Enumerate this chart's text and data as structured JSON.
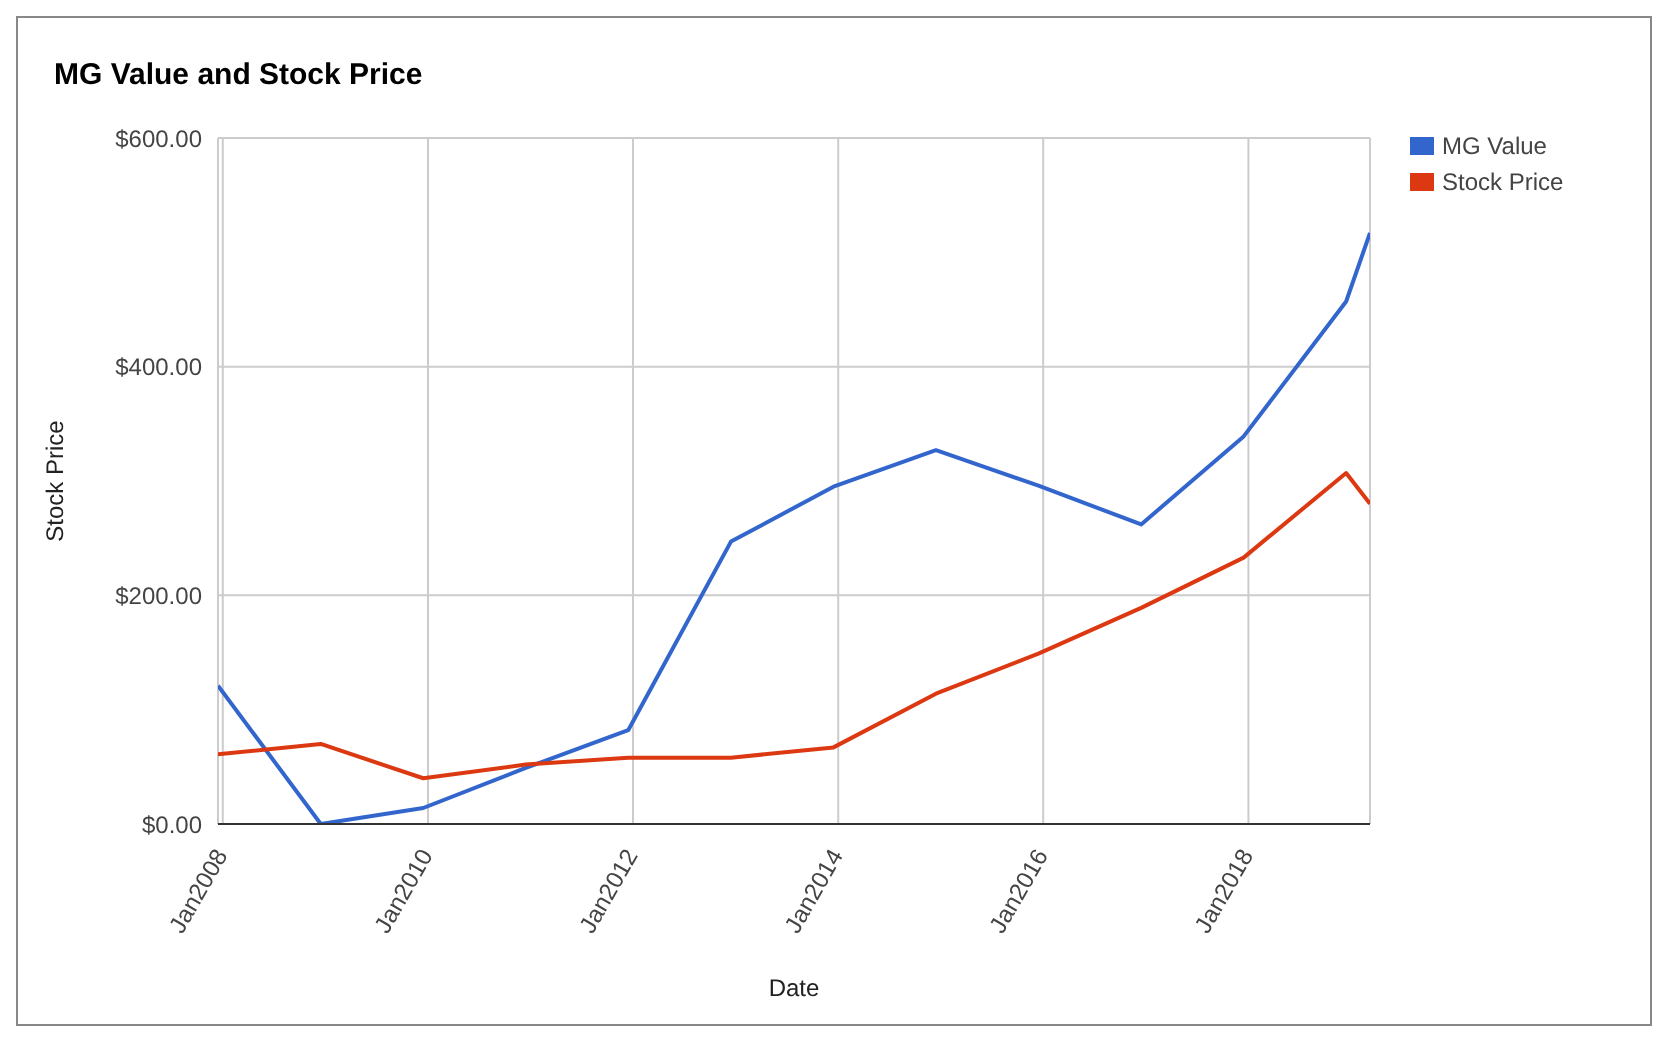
{
  "chart_data": {
    "type": "line",
    "title": "MG Value and Stock Price",
    "xlabel": "Date",
    "ylabel": "Stock Price",
    "x": [
      "2007-12-15",
      "2008-12-15",
      "2009-12-15",
      "2010-12-15",
      "2011-12-15",
      "2012-12-15",
      "2013-12-15",
      "2014-12-15",
      "2015-12-15",
      "2016-12-15",
      "2017-12-15",
      "2018-12-15",
      "2019-03-10"
    ],
    "series": [
      {
        "name": "MG Value",
        "color": "#3366cc",
        "values": [
          121,
          0,
          14,
          49,
          82,
          247,
          295,
          327,
          296,
          262,
          339,
          457,
          517
        ]
      },
      {
        "name": "Stock Price",
        "color": "#dc3912",
        "values": [
          61,
          70,
          40,
          52,
          58,
          58,
          67,
          114,
          149,
          189,
          233,
          307,
          280
        ]
      }
    ],
    "xlim": [
      "2007-12-15",
      "2019-03-10"
    ],
    "xticks": [
      {
        "value": "2008-01-01",
        "label": "Jan2008"
      },
      {
        "value": "2010-01-01",
        "label": "Jan2010"
      },
      {
        "value": "2012-01-01",
        "label": "Jan2012"
      },
      {
        "value": "2014-01-01",
        "label": "Jan2014"
      },
      {
        "value": "2016-01-01",
        "label": "Jan2016"
      },
      {
        "value": "2018-01-01",
        "label": "Jan2018"
      }
    ],
    "ylim": [
      0,
      600
    ],
    "yticks": [
      {
        "value": 0,
        "label": "$0.00"
      },
      {
        "value": 200,
        "label": "$200.00"
      },
      {
        "value": 400,
        "label": "$400.00"
      },
      {
        "value": 600,
        "label": "$600.00"
      }
    ],
    "grid": true,
    "legend": "top right",
    "marker": "none",
    "line_style": "solid"
  }
}
